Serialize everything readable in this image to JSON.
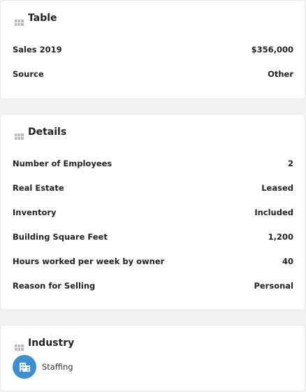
{
  "sections": [
    {
      "title": "Table",
      "rows": [
        [
          "Sales 2019",
          "$356,000"
        ],
        [
          "Source",
          "Other"
        ]
      ]
    },
    {
      "title": "Details",
      "rows": [
        [
          "Number of Employees",
          "2"
        ],
        [
          "Real Estate",
          "Leased"
        ],
        [
          "Inventory",
          "Included"
        ],
        [
          "Building Square Feet",
          "1,200"
        ],
        [
          "Hours worked per week by owner",
          "40"
        ],
        [
          "Reason for Selling",
          "Personal"
        ]
      ]
    },
    {
      "title": "Industry",
      "items": [
        {
          "label": "Staffing"
        }
      ]
    }
  ]
}
